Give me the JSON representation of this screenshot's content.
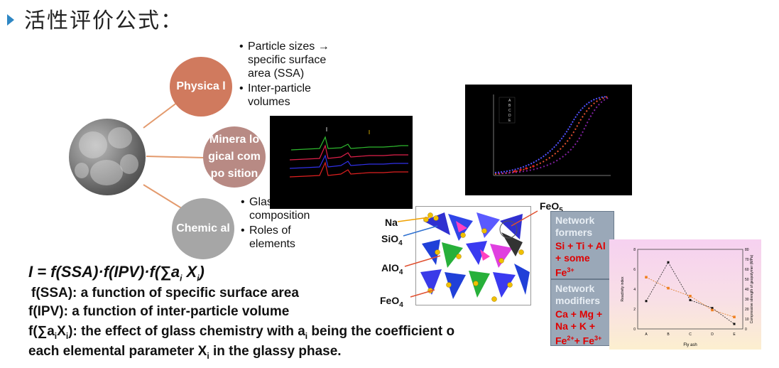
{
  "title": "活性评价公式：",
  "circles": {
    "physical": "Physica l",
    "mineral": "Minera logical compo sition",
    "chemical": "Chemic al"
  },
  "physical_bullets": [
    "Particle sizes → specific surface area (SSA)",
    "Inter-particle volumes"
  ],
  "chemical_bullets": [
    "Glass composition",
    "Roles of elements"
  ],
  "structure_labels": {
    "na": "Na",
    "sio4": "SiO",
    "alo4": "AlO",
    "feo4": "FeO",
    "feo5": "FeO",
    "sub4": "4",
    "sub5": "5"
  },
  "network_formers": {
    "header": "Network formers",
    "body": "Si + Ti + Al + some Fe",
    "sup": "3+"
  },
  "network_modifiers": {
    "header": "Network modifiers",
    "body": "Ca + Mg + Na + K + Fe",
    "sup1": "2+",
    "tail": "+ Fe",
    "sup2": "3+"
  },
  "curve_legend": [
    "A",
    "B",
    "C",
    "D",
    "E"
  ],
  "reactivity_chart": {
    "categories": [
      "A",
      "B",
      "C",
      "D",
      "E"
    ],
    "xlabel": "Fly ash",
    "ylabel_left": "Reactivity index",
    "ylabel_right": "Compressive strength of geopolymer (MPa)",
    "left_ticks": [
      "0",
      "2",
      "4",
      "6",
      "8"
    ],
    "right_ticks": [
      "0",
      "10",
      "20",
      "30",
      "40",
      "50",
      "60",
      "70",
      "80"
    ],
    "reactivity": [
      2.8,
      6.7,
      2.9,
      2.1,
      0.5
    ],
    "strength": [
      52,
      41,
      33,
      19,
      12
    ]
  },
  "formula": {
    "text": "I = f(SSA)·f(IPV)·f(∑a",
    "sub_i": "i",
    "mid": " X",
    "sub_i2": "i",
    "close": ")"
  },
  "descriptions": {
    "d1": " f(SSA): a function of specific surface area",
    "d2": "f(IPV): a function of inter-particle volume",
    "d3a": "f(∑a",
    "d3b": "X",
    "d3c": "): the effect of glass chemistry with a",
    "d3d": " being the coefficient o",
    "d4a": "each elemental parameter X",
    "d4b": " in the glassy phase.",
    "sub": "i"
  }
}
